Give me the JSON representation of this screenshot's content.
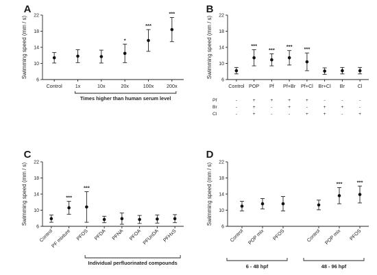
{
  "chart_data": [
    {
      "panel": "A",
      "type": "scatter",
      "ylabel": "Swimming speed (mm / s)",
      "ylim": [
        6,
        22
      ],
      "yticks": [
        6,
        10,
        14,
        18,
        22
      ],
      "categories": [
        "Control",
        "1x",
        "10x",
        "20x",
        "100x",
        "200x"
      ],
      "values": [
        11.4,
        11.8,
        11.7,
        12.5,
        15.7,
        18.4
      ],
      "errors": [
        1.3,
        1.6,
        1.6,
        2.3,
        2.7,
        3.0
      ],
      "significance": [
        "",
        "",
        "",
        "*",
        "***",
        "***"
      ],
      "bracket_label": "Times higher than human serum level",
      "rotated_ticks": false
    },
    {
      "panel": "B",
      "type": "scatter",
      "ylabel": "Swimming speed (mm / s)",
      "ylim": [
        6,
        22
      ],
      "yticks": [
        6,
        10,
        14,
        18,
        22
      ],
      "categories": [
        "Control",
        "POP",
        "Pf",
        "Pf+Br",
        "Pf+Cl",
        "Br+Cl",
        "Br",
        "Cl"
      ],
      "values": [
        8.2,
        11.4,
        10.9,
        11.4,
        10.4,
        8.1,
        8.2,
        8.2
      ],
      "errors": [
        0.8,
        2.0,
        1.5,
        1.8,
        2.2,
        0.8,
        0.8,
        0.8
      ],
      "significance": [
        "",
        "***",
        "***",
        "***",
        "***",
        "",
        "",
        ""
      ],
      "rotated_ticks": false,
      "matrix": {
        "rows": [
          "Pf",
          "Br",
          "Cl"
        ],
        "cells": [
          [
            "-",
            "+",
            "+",
            "+",
            "+",
            "-",
            "-",
            "-"
          ],
          [
            "-",
            "+",
            "-",
            "+",
            "-",
            "+",
            "+",
            "-"
          ],
          [
            "-",
            "+",
            "-",
            "-",
            "+",
            "+",
            "-",
            "+"
          ]
        ]
      }
    },
    {
      "panel": "C",
      "type": "scatter",
      "ylabel": "Swimming speed (mm / s)",
      "ylim": [
        6,
        22
      ],
      "yticks": [
        6,
        10,
        14,
        18,
        22
      ],
      "categories": [
        "Control",
        "PF mixture",
        "PFOS",
        "PFDA",
        "PFNA",
        "PFOA",
        "PFUnDA",
        "PFHxS"
      ],
      "values": [
        7.9,
        10.6,
        10.8,
        7.7,
        7.9,
        7.7,
        7.8,
        7.9
      ],
      "errors": [
        0.9,
        1.6,
        3.8,
        0.8,
        1.4,
        1.0,
        1.0,
        1.0
      ],
      "significance": [
        "",
        "***",
        "***",
        "",
        "",
        "",
        "",
        ""
      ],
      "bracket_label": "Individual perfluorinated compounds",
      "rotated_ticks": true
    },
    {
      "panel": "D",
      "type": "scatter",
      "ylabel": "Swimming speed (mm / s)",
      "ylim": [
        6,
        22
      ],
      "yticks": [
        6,
        10,
        14,
        18,
        22
      ],
      "categories": [
        "Control",
        "POP mix",
        "PFOS",
        "Control",
        "POP mix",
        "PFOS"
      ],
      "values": [
        11.0,
        11.6,
        11.6,
        11.3,
        13.6,
        13.9
      ],
      "errors": [
        1.2,
        1.3,
        1.8,
        1.2,
        2.0,
        2.1
      ],
      "significance": [
        "",
        "",
        "",
        "",
        "***",
        "***"
      ],
      "groups": [
        {
          "label": "6 - 48 hpf"
        },
        {
          "label": "48 - 96 hpf"
        }
      ],
      "rotated_ticks": true
    }
  ]
}
